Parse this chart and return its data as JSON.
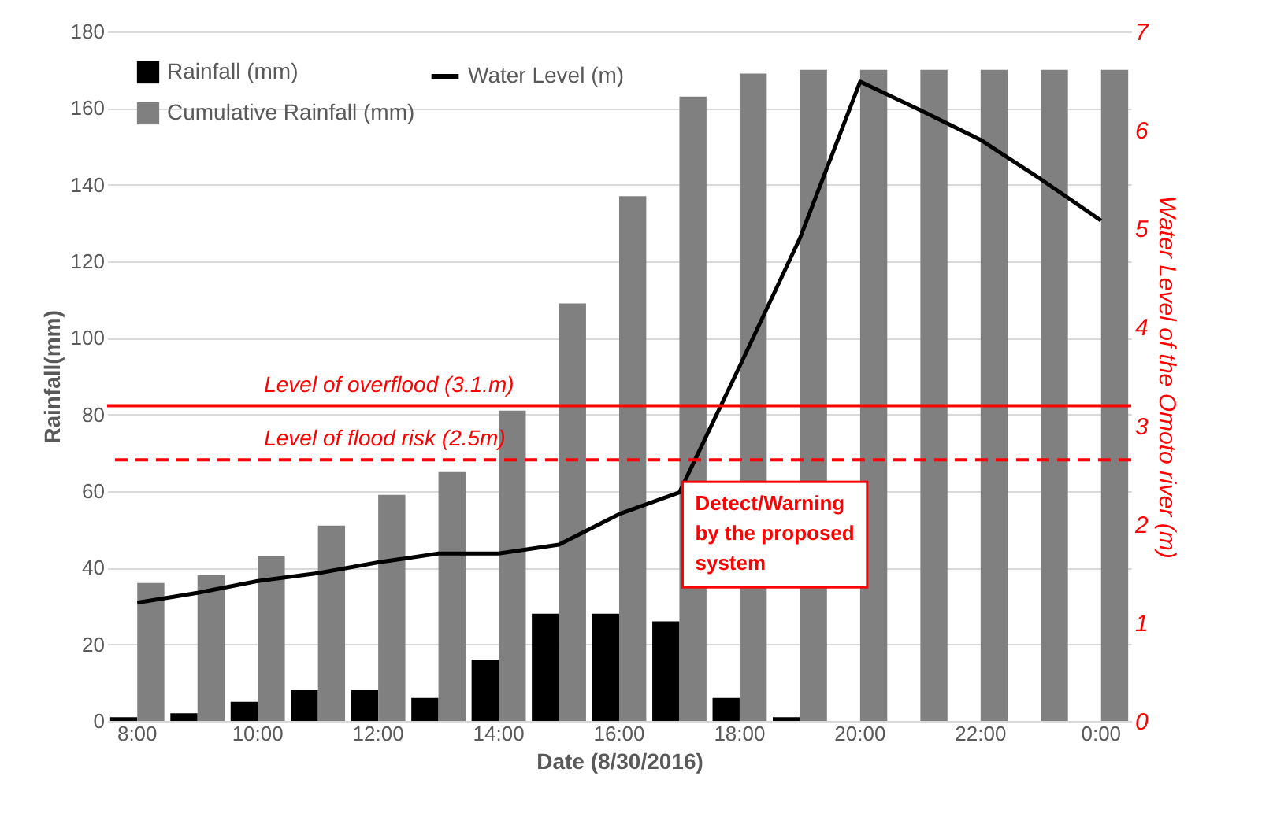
{
  "chart_data": {
    "type": "bar",
    "categories": [
      "8:00",
      null,
      "10:00",
      null,
      "12:00",
      null,
      "14:00",
      null,
      "16:00",
      null,
      "18:00",
      null,
      "20:00",
      null,
      "22:00",
      null,
      "0:00"
    ],
    "xlabel": "Date (8/30/2016)",
    "ylabel": "Rainfall(mm)",
    "y2label": "Water Level of the Omoto river (m)",
    "series": [
      {
        "name": "Rainfall (mm)",
        "color": "#000000",
        "values": [
          1,
          2,
          5,
          8,
          8,
          6,
          16,
          28,
          28,
          26,
          6,
          1,
          0,
          0,
          0,
          0,
          0
        ]
      },
      {
        "name": "Cumulative Rainfall (mm)",
        "color": "#808080",
        "values": [
          36,
          38,
          43,
          51,
          59,
          65,
          81,
          109,
          137,
          163,
          169,
          170,
          170,
          170,
          170,
          170,
          170
        ]
      },
      {
        "name": "Water Level (m)",
        "type": "line",
        "axis": "y2",
        "color": "#000000",
        "values": [
          1.2,
          1.3,
          1.42,
          1.5,
          1.61,
          1.7,
          1.7,
          1.79,
          2.1,
          2.32,
          3.6,
          4.9,
          6.49,
          6.2,
          5.9,
          5.5,
          5.08
        ]
      }
    ],
    "ylim": [
      0,
      180
    ],
    "yticks": [
      0,
      20,
      40,
      60,
      80,
      100,
      120,
      140,
      160,
      180
    ],
    "y2lim": [
      0,
      7
    ],
    "y2ticks": [
      0,
      1,
      2,
      3,
      4,
      5,
      6,
      7
    ],
    "ref_lines": [
      {
        "axis": "y2",
        "value": 3.2,
        "label": "Level of overflood (3.1.m)",
        "color": "#ff0000",
        "line_style": "solid"
      },
      {
        "axis": "y2",
        "value": 2.65,
        "label": "Level of flood risk (2.5m)",
        "color": "#ff0000",
        "line_style": "dashed"
      }
    ],
    "annotations": [
      "Detect/Warning by the proposed system"
    ],
    "grid": "y",
    "legend": "top left",
    "marker": "none",
    "line_style": "solid"
  }
}
